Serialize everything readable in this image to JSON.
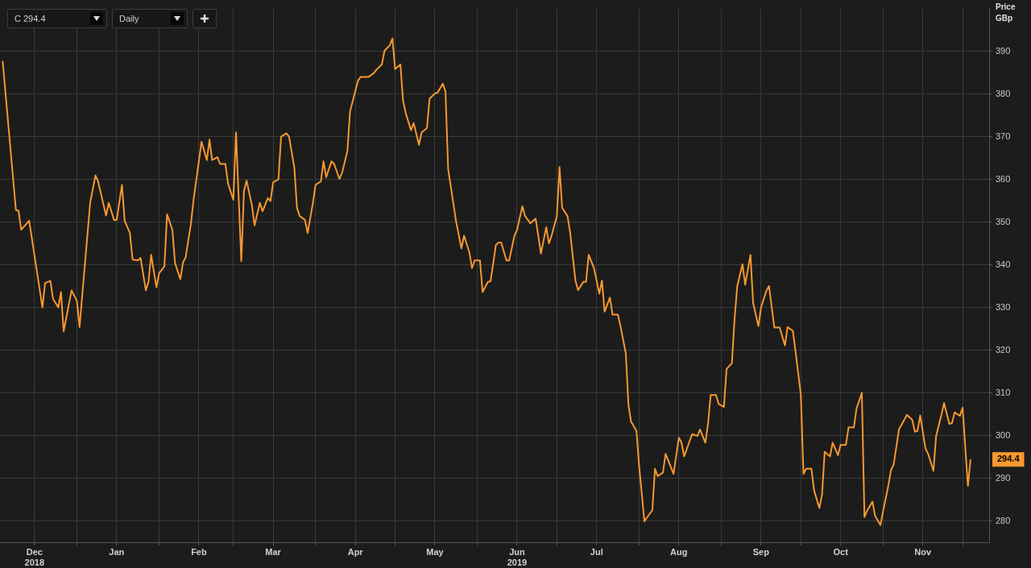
{
  "chart_data": {
    "type": "line",
    "ylabel": "Price\nGBp",
    "annotations": [
      "C 294.4",
      "Daily",
      "294.4"
    ],
    "x": [
      "2018-12-04",
      "2018-12-09",
      "2018-12-10",
      "2018-12-11",
      "2018-12-14",
      "2018-12-19",
      "2018-12-20",
      "2018-12-22",
      "2018-12-23",
      "2018-12-25",
      "2018-12-26",
      "2018-12-27",
      "2018-12-30",
      "2019-01-01",
      "2019-01-02",
      "2019-01-06",
      "2019-01-08",
      "2019-01-09",
      "2019-01-12",
      "2019-01-13",
      "2019-01-15",
      "2019-01-16",
      "2019-01-18",
      "2019-01-19",
      "2019-01-21",
      "2019-01-22",
      "2019-01-24",
      "2019-01-25",
      "2019-01-27",
      "2019-01-28",
      "2019-01-29",
      "2019-01-31",
      "2019-02-01",
      "2019-02-03",
      "2019-02-04",
      "2019-02-06",
      "2019-02-07",
      "2019-02-09",
      "2019-02-10",
      "2019-02-11",
      "2019-02-13",
      "2019-02-14",
      "2019-02-17",
      "2019-02-19",
      "2019-02-20",
      "2019-02-21",
      "2019-02-23",
      "2019-02-24",
      "2019-02-26",
      "2019-02-27",
      "2019-03-01",
      "2019-03-02",
      "2019-03-04",
      "2019-03-05",
      "2019-03-06",
      "2019-03-08",
      "2019-03-09",
      "2019-03-11",
      "2019-03-12",
      "2019-03-14",
      "2019-03-15",
      "2019-03-16",
      "2019-03-18",
      "2019-03-19",
      "2019-03-21",
      "2019-03-22",
      "2019-03-24",
      "2019-03-25",
      "2019-03-26",
      "2019-03-28",
      "2019-03-29",
      "2019-03-31",
      "2019-04-01",
      "2019-04-03",
      "2019-04-04",
      "2019-04-05",
      "2019-04-07",
      "2019-04-08",
      "2019-04-10",
      "2019-04-11",
      "2019-04-13",
      "2019-04-14",
      "2019-04-17",
      "2019-04-18",
      "2019-04-21",
      "2019-04-23",
      "2019-04-24",
      "2019-04-26",
      "2019-04-27",
      "2019-04-29",
      "2019-04-30",
      "2019-05-01",
      "2019-05-03",
      "2019-05-04",
      "2019-05-05",
      "2019-05-07",
      "2019-05-08",
      "2019-05-10",
      "2019-05-11",
      "2019-05-13",
      "2019-05-14",
      "2019-05-16",
      "2019-05-17",
      "2019-05-19",
      "2019-05-20",
      "2019-05-21",
      "2019-05-23",
      "2019-05-24",
      "2019-05-26",
      "2019-05-27",
      "2019-05-29",
      "2019-05-30",
      "2019-05-31",
      "2019-06-02",
      "2019-06-03",
      "2019-06-05",
      "2019-06-06",
      "2019-06-08",
      "2019-06-09",
      "2019-06-10",
      "2019-06-12",
      "2019-06-13",
      "2019-06-15",
      "2019-06-16",
      "2019-06-18",
      "2019-06-19",
      "2019-06-21",
      "2019-06-23",
      "2019-06-25",
      "2019-06-27",
      "2019-06-28",
      "2019-06-29",
      "2019-07-01",
      "2019-07-02",
      "2019-07-03",
      "2019-07-05",
      "2019-07-06",
      "2019-07-08",
      "2019-07-09",
      "2019-07-11",
      "2019-07-12",
      "2019-07-13",
      "2019-07-15",
      "2019-07-17",
      "2019-07-18",
      "2019-07-19",
      "2019-07-21",
      "2019-07-22",
      "2019-07-24",
      "2019-07-25",
      "2019-07-27",
      "2019-07-28",
      "2019-07-29",
      "2019-07-31",
      "2019-08-01",
      "2019-08-03",
      "2019-08-04",
      "2019-08-06",
      "2019-08-07",
      "2019-08-08",
      "2019-08-10",
      "2019-08-11",
      "2019-08-14",
      "2019-08-16",
      "2019-08-17",
      "2019-08-18",
      "2019-08-21",
      "2019-08-23",
      "2019-08-24",
      "2019-08-26",
      "2019-08-27",
      "2019-08-28",
      "2019-08-30",
      "2019-08-31",
      "2019-09-02",
      "2019-09-03",
      "2019-09-05",
      "2019-09-06",
      "2019-09-07",
      "2019-09-09",
      "2019-09-10",
      "2019-09-12",
      "2019-09-13",
      "2019-09-15",
      "2019-09-16",
      "2019-09-18",
      "2019-09-19",
      "2019-09-21",
      "2019-09-23",
      "2019-09-25",
      "2019-09-26",
      "2019-09-28",
      "2019-09-29",
      "2019-10-01",
      "2019-10-02",
      "2019-10-03",
      "2019-10-05",
      "2019-10-06",
      "2019-10-08",
      "2019-10-09",
      "2019-10-10",
      "2019-10-12",
      "2019-10-13",
      "2019-10-15",
      "2019-10-16",
      "2019-10-18",
      "2019-10-19",
      "2019-10-21",
      "2019-10-22",
      "2019-10-24",
      "2019-10-25",
      "2019-10-26",
      "2019-10-28",
      "2019-10-29",
      "2019-10-31",
      "2019-11-01",
      "2019-11-03",
      "2019-11-04",
      "2019-11-05",
      "2019-11-07",
      "2019-11-10",
      "2019-11-12",
      "2019-11-13",
      "2019-11-14",
      "2019-11-15",
      "2019-11-17",
      "2019-11-18",
      "2019-11-20",
      "2019-11-21",
      "2019-11-23",
      "2019-11-24",
      "2019-11-26",
      "2019-11-27",
      "2019-11-28",
      "2019-11-30",
      "2019-12-01",
      "2019-12-03",
      "2019-12-04"
    ],
    "series": [
      {
        "color": "#f7982f",
        "values": [
          387.7,
          352.8,
          352.6,
          348.2,
          350.3,
          330,
          335.7,
          336.2,
          332,
          330,
          333.6,
          324.4,
          334,
          331.5,
          325.4,
          354.5,
          360.9,
          359.5,
          351.5,
          354.5,
          350.5,
          350.5,
          358.7,
          350.3,
          347.4,
          341.2,
          341,
          341.6,
          334,
          336,
          342.3,
          334.7,
          338,
          339.6,
          351.8,
          348.2,
          340.4,
          336.6,
          340.5,
          341.7,
          349.6,
          355.2,
          368.8,
          364.5,
          369.3,
          364.5,
          365.2,
          363.6,
          363.6,
          359,
          355.2,
          371,
          340.8,
          357.3,
          359.7,
          353.9,
          349.2,
          354.5,
          352.5,
          355.6,
          354.9,
          359.3,
          360,
          370,
          370.8,
          370,
          362.7,
          353.3,
          351.4,
          350.5,
          347.4,
          354.5,
          358.7,
          359.5,
          364.2,
          360.5,
          364.2,
          363.6,
          360.1,
          361.5,
          366.6,
          375.9,
          383.1,
          384,
          384,
          384.9,
          385.7,
          386.9,
          390.1,
          391.4,
          393,
          385.8,
          386.9,
          378.4,
          375.5,
          371.5,
          373.2,
          368.1,
          371,
          372,
          378.9,
          380.1,
          380.3,
          382.4,
          380.5,
          362.4,
          354.2,
          350.1,
          343.8,
          346.8,
          342.9,
          339.2,
          341,
          341,
          333.6,
          336,
          336.1,
          344.6,
          345.2,
          345.2,
          341,
          341,
          346.8,
          348.2,
          353.7,
          351.4,
          349.7,
          350.8,
          342.6,
          348.8,
          345,
          346.8,
          351.4,
          362.9,
          353.3,
          351.4,
          347.6,
          336.3,
          334,
          336,
          336,
          342.3,
          339.2,
          333.2,
          336.3,
          329,
          332.3,
          328.3,
          328.3,
          325.6,
          319.2,
          307.1,
          303.2,
          301.1,
          293,
          279.9,
          280.8,
          282.5,
          292.2,
          290.5,
          291.3,
          295.7,
          291,
          299.5,
          298.3,
          295.1,
          300.3,
          299.9,
          301.4,
          298.3,
          302.7,
          309.5,
          309.5,
          307.4,
          306.7,
          315.6,
          316.9,
          327.2,
          334.9,
          340.1,
          335.3,
          342.3,
          331.1,
          325.6,
          330,
          333.9,
          335,
          325.3,
          325.3,
          321.1,
          325.4,
          324.5,
          319.7,
          309.5,
          291,
          292.2,
          292.2,
          287.1,
          283,
          286.2,
          296.2,
          295.1,
          298.3,
          295.4,
          297.8,
          297.8,
          301.9,
          301.9,
          306.3,
          310,
          280.9,
          282.4,
          284.5,
          281.2,
          279,
          282.2,
          288.3,
          291.9,
          293.2,
          301.4,
          304.8,
          303.7,
          300.9,
          301.1,
          304.7,
          297,
          295.7,
          291.7,
          299.8,
          304.8,
          307.6,
          302.7,
          302.9,
          305.4,
          304.6,
          306.5,
          288.2,
          294.4
        ]
      }
    ],
    "xlim": [
      "2018-12-03",
      "2019-12-11"
    ],
    "xticks": [
      {
        "value": "2018-12-16",
        "label": "Dec\n2018"
      },
      {
        "value": "2019-01-01",
        "label": null
      },
      {
        "value": "2019-01-16",
        "label": "Jan"
      },
      {
        "value": "2019-02-01",
        "label": null
      },
      {
        "value": "2019-02-16",
        "label": "Feb"
      },
      {
        "value": "2019-03-01",
        "label": null
      },
      {
        "value": "2019-03-16",
        "label": "Mar"
      },
      {
        "value": "2019-04-01",
        "label": null
      },
      {
        "value": "2019-04-16",
        "label": "Apr"
      },
      {
        "value": "2019-05-01",
        "label": null
      },
      {
        "value": "2019-05-16",
        "label": "May"
      },
      {
        "value": "2019-06-01",
        "label": null
      },
      {
        "value": "2019-06-16",
        "label": "Jun\n2019"
      },
      {
        "value": "2019-07-01",
        "label": null
      },
      {
        "value": "2019-07-16",
        "label": "Jul"
      },
      {
        "value": "2019-08-01",
        "label": null
      },
      {
        "value": "2019-08-16",
        "label": "Aug"
      },
      {
        "value": "2019-09-01",
        "label": null
      },
      {
        "value": "2019-09-16",
        "label": "Sep"
      },
      {
        "value": "2019-10-01",
        "label": null
      },
      {
        "value": "2019-10-16",
        "label": "Oct"
      },
      {
        "value": "2019-11-01",
        "label": null
      },
      {
        "value": "2019-11-16",
        "label": "Nov"
      },
      {
        "value": "2019-12-01",
        "label": null
      }
    ],
    "ylim": [
      275,
      400
    ],
    "yticks": [
      280,
      290,
      300,
      310,
      320,
      330,
      340,
      350,
      360,
      370,
      380,
      390
    ],
    "grid": true,
    "legend": false,
    "marker": "none",
    "line_style": "solid"
  }
}
